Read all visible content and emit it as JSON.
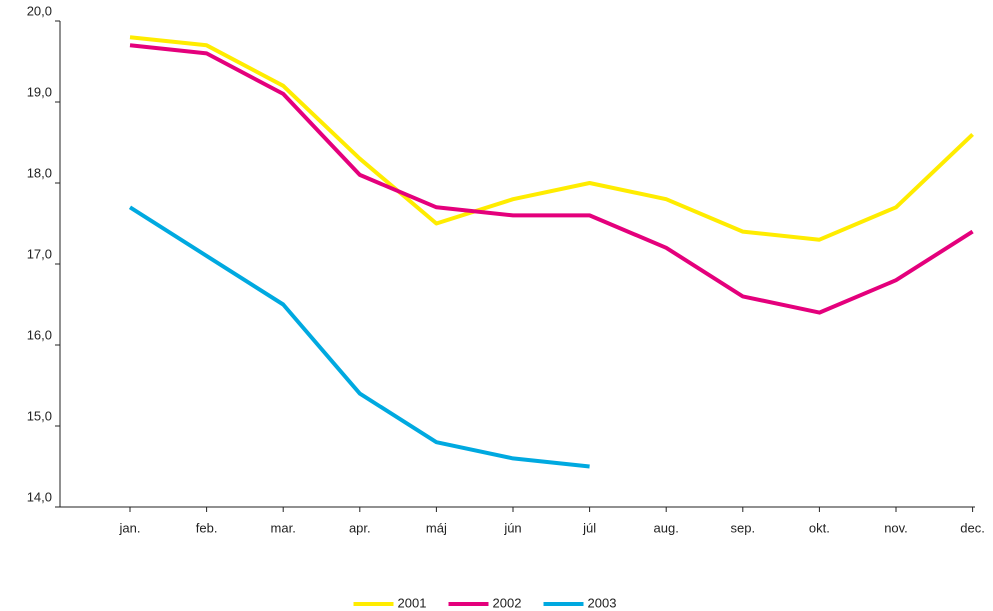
{
  "chart_data": {
    "type": "line",
    "categories": [
      "jan.",
      "feb.",
      "mar.",
      "apr.",
      "máj",
      "jún",
      "júl",
      "aug.",
      "sep.",
      "okt.",
      "nov.",
      "dec."
    ],
    "series": [
      {
        "name": "2001",
        "color": "#ffec00",
        "values": [
          19.8,
          19.7,
          19.2,
          18.3,
          17.5,
          17.8,
          18.0,
          17.8,
          17.4,
          17.3,
          17.7,
          18.6
        ]
      },
      {
        "name": "2002",
        "color": "#e4007c",
        "values": [
          19.7,
          19.6,
          19.1,
          18.1,
          17.7,
          17.6,
          17.6,
          17.2,
          16.6,
          16.4,
          16.8,
          17.4
        ]
      },
      {
        "name": "2003",
        "color": "#00a9e0",
        "values": [
          17.7,
          17.1,
          16.5,
          15.4,
          14.8,
          14.6,
          14.5,
          null,
          null,
          null,
          null,
          null
        ]
      }
    ],
    "ylim": [
      14,
      20
    ],
    "yticks": [
      {
        "value": 14,
        "label": "14,0"
      },
      {
        "value": 15,
        "label": "15,0"
      },
      {
        "value": 16,
        "label": "16,0"
      },
      {
        "value": 17,
        "label": "17,0"
      },
      {
        "value": 18,
        "label": "18,0"
      },
      {
        "value": 19,
        "label": "19,0"
      },
      {
        "value": 20,
        "label": "20,0"
      }
    ],
    "grid": false,
    "legend": "bottom"
  }
}
